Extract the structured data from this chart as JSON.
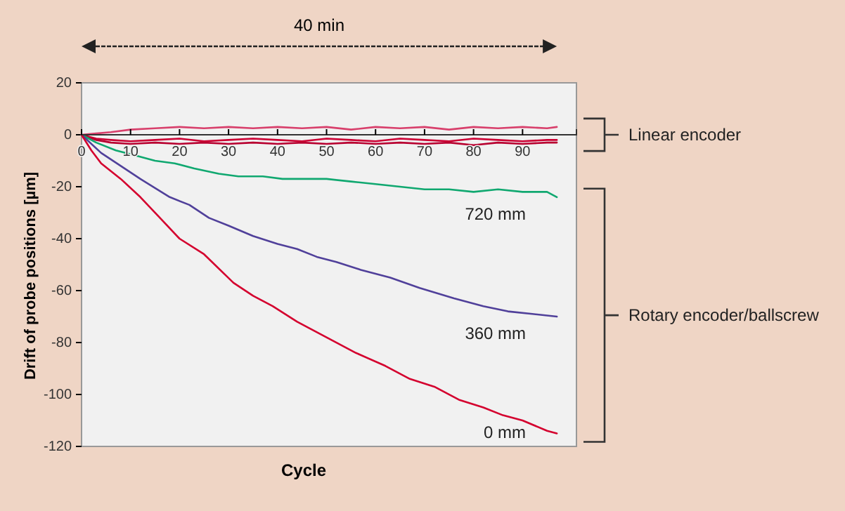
{
  "chart_data": {
    "type": "line",
    "xlabel": "Cycle",
    "ylabel": "Drift of probe positions  [µm]",
    "xlim": [
      0,
      101
    ],
    "xticks": [
      0,
      10,
      20,
      30,
      40,
      50,
      60,
      70,
      80,
      90
    ],
    "ylim": [
      -120,
      20
    ],
    "yticks": [
      20,
      0,
      -20,
      -40,
      -60,
      -80,
      -100,
      -120
    ],
    "grid": false,
    "marker": "none",
    "line_style": "solid",
    "annotations": [
      "40 min",
      "Linear encoder",
      "Rotary encoder/ballscrew"
    ],
    "series": [
      {
        "color": "#d8406c",
        "x": [
          0,
          3,
          6,
          10,
          15,
          20,
          25,
          30,
          35,
          40,
          45,
          50,
          55,
          60,
          65,
          70,
          75,
          80,
          85,
          90,
          95,
          97
        ],
        "values": [
          0,
          0.5,
          1,
          2,
          2.5,
          3,
          2.5,
          3,
          2.5,
          3,
          2.5,
          3,
          2,
          3,
          2.5,
          3,
          2,
          3,
          2.5,
          3,
          2.5,
          3
        ]
      },
      {
        "color": "#cc0033",
        "x": [
          0,
          3,
          6,
          10,
          15,
          20,
          25,
          30,
          35,
          40,
          45,
          50,
          55,
          60,
          65,
          70,
          75,
          80,
          85,
          90,
          95,
          97
        ],
        "values": [
          0,
          -1.5,
          -2,
          -2.5,
          -2,
          -1.5,
          -2.5,
          -2,
          -1.5,
          -2,
          -2.5,
          -1.5,
          -2,
          -2.5,
          -1.5,
          -2,
          -2.5,
          -1.5,
          -2,
          -2.5,
          -2,
          -2
        ]
      },
      {
        "color": "#b80030",
        "x": [
          0,
          3,
          6,
          10,
          15,
          20,
          25,
          30,
          35,
          40,
          45,
          50,
          55,
          60,
          65,
          70,
          75,
          80,
          85,
          90,
          95,
          97
        ],
        "values": [
          0,
          -2,
          -3,
          -3.5,
          -3,
          -3.5,
          -3,
          -3.5,
          -3,
          -3.5,
          -3,
          -3.5,
          -3,
          -3.5,
          -3,
          -3.5,
          -3,
          -4,
          -3,
          -3.5,
          -3,
          -3
        ]
      },
      {
        "name": "720 mm",
        "color": "#10a870",
        "x": [
          0,
          3,
          7,
          11,
          15,
          19,
          23,
          28,
          32,
          37,
          41,
          46,
          50,
          55,
          60,
          65,
          70,
          75,
          80,
          85,
          90,
          95,
          97
        ],
        "values": [
          0,
          -3,
          -6,
          -8,
          -10,
          -11,
          -13,
          -15,
          -16,
          -16,
          -17,
          -17,
          -17,
          -18,
          -19,
          -20,
          -21,
          -21,
          -22,
          -21,
          -22,
          -22,
          -24
        ]
      },
      {
        "name": "360 mm",
        "color": "#50409a",
        "x": [
          0,
          4,
          8,
          12,
          18,
          22,
          26,
          30,
          35,
          40,
          44,
          48,
          52,
          57,
          63,
          69,
          76,
          82,
          87,
          92,
          97
        ],
        "values": [
          0,
          -7,
          -12,
          -17,
          -24,
          -27,
          -32,
          -35,
          -39,
          -42,
          -44,
          -47,
          -49,
          -52,
          -55,
          -59,
          -63,
          -66,
          -68,
          -69,
          -70
        ]
      },
      {
        "name": "0 mm",
        "color": "#d4002e",
        "x": [
          0,
          2,
          4,
          8,
          12,
          16,
          20,
          25,
          31,
          35,
          39,
          44,
          50,
          56,
          62,
          67,
          72,
          77,
          82,
          86,
          90,
          95,
          97
        ],
        "values": [
          0,
          -6,
          -11,
          -17,
          -24,
          -32,
          -40,
          -46,
          -57,
          -62,
          -66,
          -72,
          -78,
          -84,
          -89,
          -94,
          -97,
          -102,
          -105,
          -108,
          -110,
          -114,
          -115
        ]
      }
    ]
  }
}
